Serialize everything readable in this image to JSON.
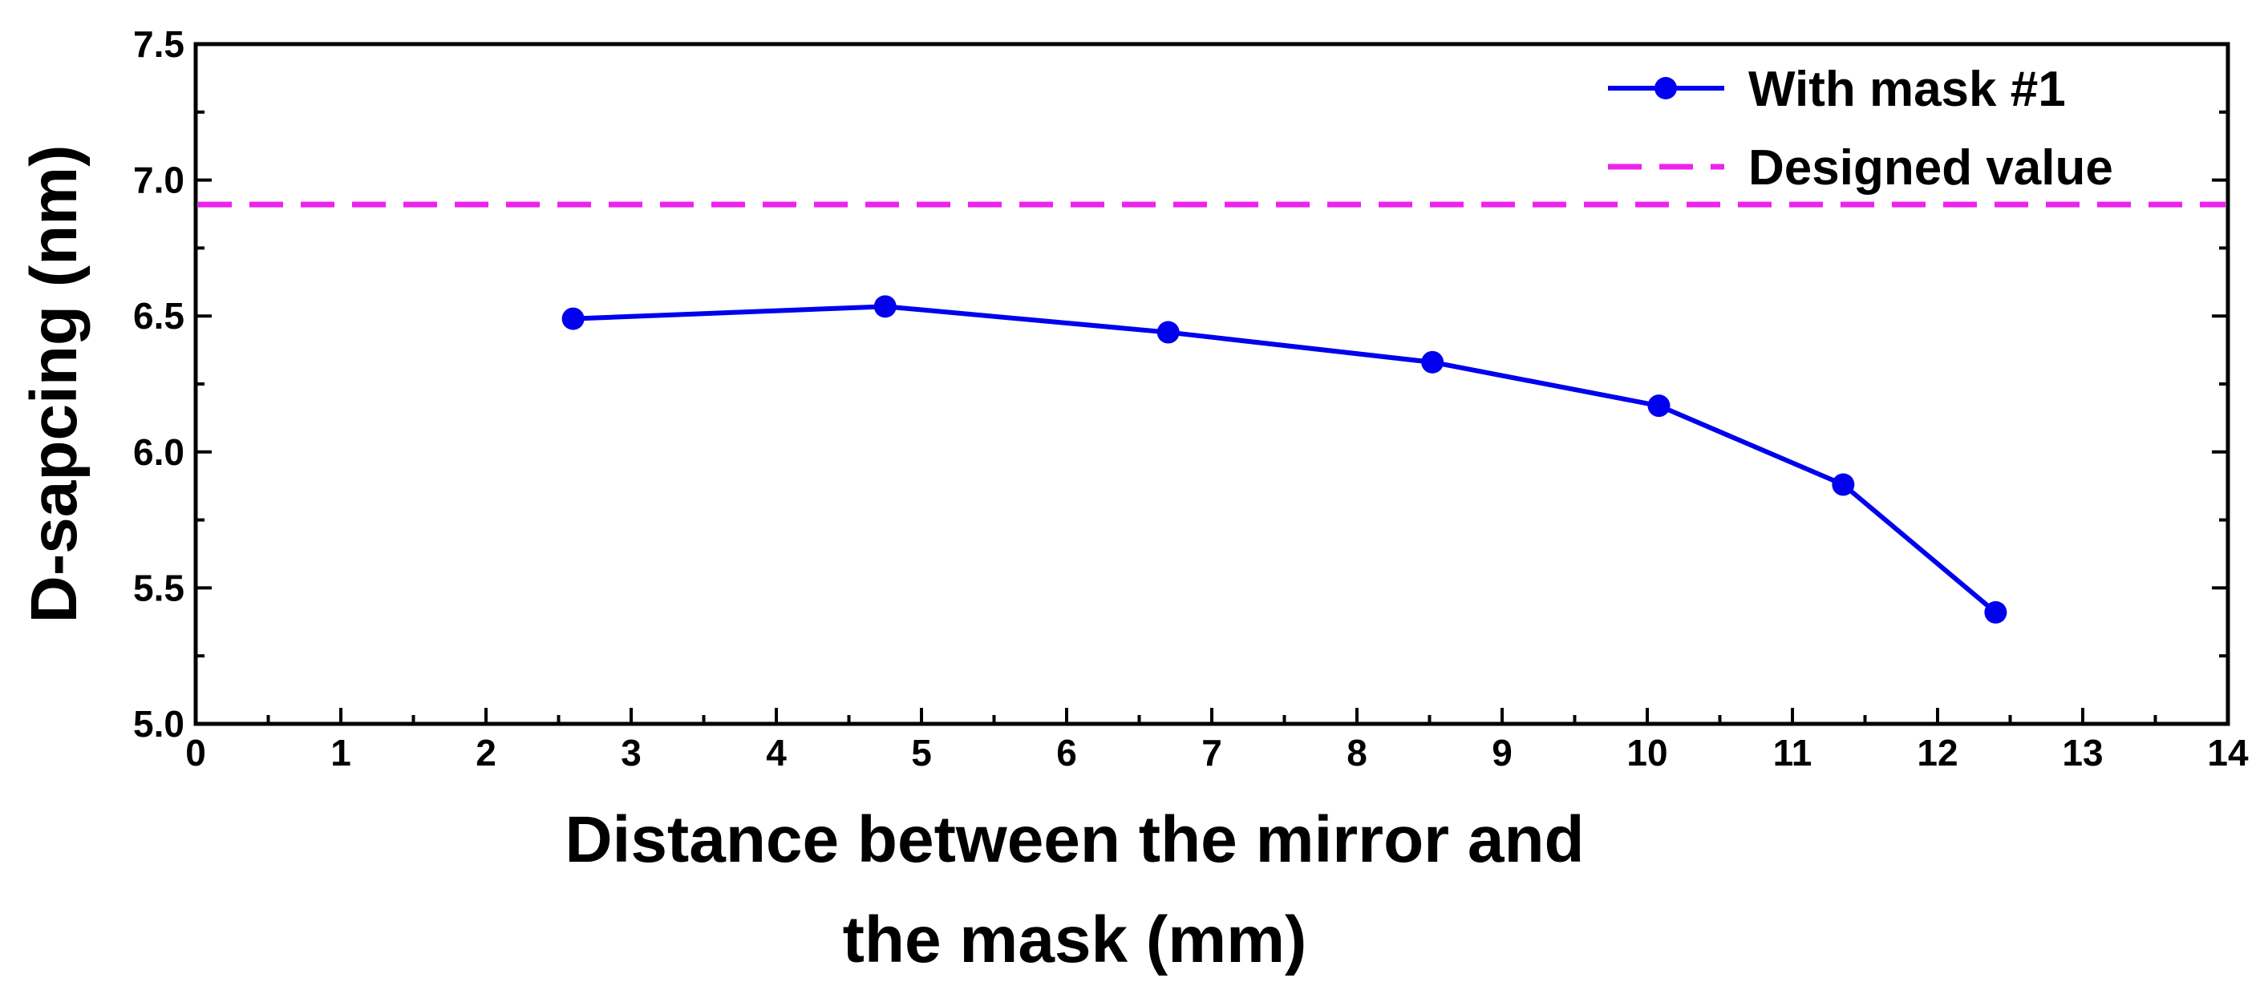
{
  "chart_data": {
    "type": "line",
    "title": "",
    "xlabel_lines": [
      "Distance between the mirror and",
      "the mask (mm)"
    ],
    "ylabel": "D-sapcing (nm)",
    "xlim": [
      0,
      14
    ],
    "ylim": [
      5.0,
      7.5
    ],
    "x_ticks": [
      0,
      1,
      2,
      3,
      4,
      5,
      6,
      7,
      8,
      9,
      10,
      11,
      12,
      13,
      14
    ],
    "x_tick_labels": [
      "0",
      "1",
      "2",
      "3",
      "4",
      "5",
      "6",
      "7",
      "8",
      "9",
      "10",
      "11",
      "12",
      "13",
      "14"
    ],
    "y_ticks": [
      5.0,
      5.5,
      6.0,
      6.5,
      7.0,
      7.5
    ],
    "y_tick_labels": [
      "5.0",
      "5.5",
      "6.0",
      "6.5",
      "7.0",
      "7.5"
    ],
    "grid": false,
    "legend_position": "top-right",
    "series": [
      {
        "name": "With mask #1",
        "style": "solid-line-with-markers",
        "color": "#0000ee",
        "x": [
          2.6,
          4.75,
          6.7,
          8.52,
          10.08,
          11.35,
          12.4
        ],
        "y": [
          6.49,
          6.535,
          6.44,
          6.33,
          6.17,
          5.88,
          5.41
        ]
      },
      {
        "name": "Designed value",
        "style": "dashed-horizontal-line",
        "color": "#ee22ee",
        "y_const": 6.91
      }
    ]
  }
}
